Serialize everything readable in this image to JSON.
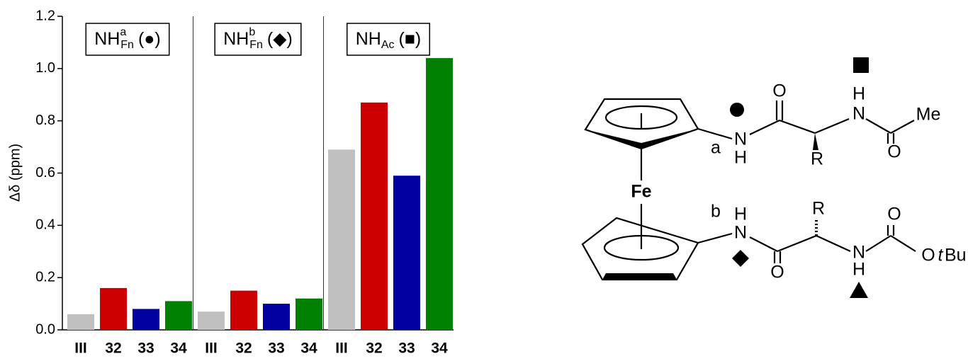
{
  "chart_data": {
    "type": "bar",
    "ylabel": "Δδ (ppm)",
    "ylim": [
      0,
      1.2
    ],
    "yticks": [
      {
        "value": 0,
        "label": "0.0"
      },
      0.2,
      0.4,
      0.6,
      0.8,
      {
        "value": 1,
        "label": "1.0"
      },
      1.2
    ],
    "colors": [
      "#c0c0c0",
      "#cc0000",
      "#0000a0",
      "#007f00"
    ],
    "groups": [
      {
        "label": {
          "text": "NH",
          "sup": "a",
          "sub": "Fn",
          "symbol": "(●)"
        },
        "categories": [
          "III",
          "32",
          "33",
          "34"
        ],
        "values": [
          0.06,
          0.16,
          0.08,
          0.11
        ]
      },
      {
        "label": {
          "text": "NH",
          "sup": "b",
          "sub": "Fn",
          "symbol": "(◆)"
        },
        "categories": [
          "III",
          "32",
          "33",
          "34"
        ],
        "values": [
          0.07,
          0.15,
          0.1,
          0.12
        ]
      },
      {
        "label": {
          "text": "NH",
          "sub": "Ac",
          "symbol": "(■)"
        },
        "categories": [
          "III",
          "32",
          "33",
          "34"
        ],
        "values": [
          0.69,
          0.87,
          0.59,
          1.04
        ]
      }
    ]
  },
  "diagram": {
    "labels": [
      "Fe",
      "a",
      "N",
      "H",
      "O",
      "H",
      "N",
      "R",
      "O",
      "Me",
      "b",
      "H",
      "N",
      "O",
      "R",
      "N",
      "H",
      "O",
      "O",
      "t",
      "Bu"
    ]
  }
}
